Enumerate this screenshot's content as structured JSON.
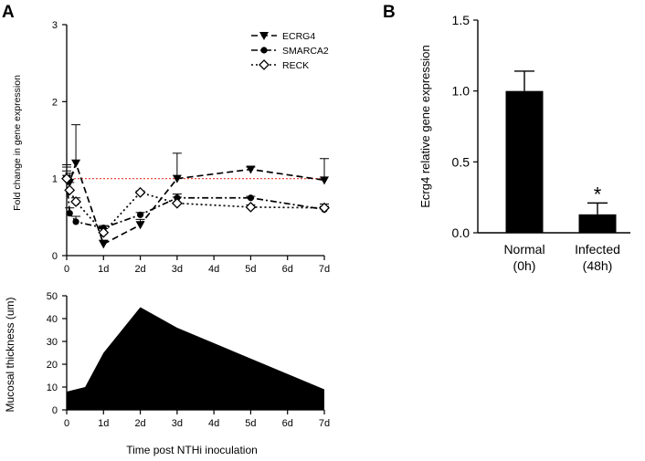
{
  "panels": {
    "a": {
      "label": "A"
    },
    "b": {
      "label": "B"
    }
  },
  "colors": {
    "axis": "#000000",
    "reference_line": "#e8382a",
    "bar": "#000000",
    "area": "#000000"
  },
  "chart_data": [
    {
      "id": "fold-change",
      "type": "line",
      "title": "",
      "xlabel": "",
      "ylabel": "Fold change in gene expression",
      "xlim": [
        0,
        7
      ],
      "ylim": [
        0,
        3
      ],
      "xticks": [
        0,
        1,
        2,
        3,
        4,
        5,
        6,
        7
      ],
      "xtick_labels": [
        "0",
        "1d",
        "2d",
        "3d",
        "4d",
        "5d",
        "6d",
        "7d"
      ],
      "yticks": [
        0,
        1,
        2,
        3
      ],
      "ytick_labels": [
        "0",
        "1",
        "2",
        "3"
      ],
      "reference_line": {
        "y": 1,
        "style": "dotted",
        "color": "#e8382a"
      },
      "series": [
        {
          "name": "ECRG4",
          "marker": "triangle-down",
          "linestyle": "dashed",
          "x": [
            0,
            0.08,
            0.25,
            1,
            2,
            3,
            5,
            7
          ],
          "y": [
            1.0,
            0.95,
            1.2,
            0.15,
            0.4,
            1.0,
            1.12,
            0.98
          ],
          "err": [
            0.15,
            0.12,
            0.5,
            0.05,
            0.07,
            0.33,
            0.03,
            0.28
          ]
        },
        {
          "name": "SMARCA2",
          "marker": "circle",
          "linestyle": "dash-dot",
          "x": [
            0,
            0.08,
            0.25,
            1,
            2,
            3,
            5,
            7
          ],
          "y": [
            1.0,
            0.55,
            0.44,
            0.36,
            0.53,
            0.75,
            0.75,
            0.6
          ],
          "err": [
            0.1,
            0.07,
            0.07,
            0.03,
            0.03,
            0.05,
            0.02,
            0.04
          ]
        },
        {
          "name": "RECK",
          "marker": "diamond-open",
          "linestyle": "dotted",
          "x": [
            0,
            0.08,
            0.25,
            1,
            2,
            3,
            5,
            7
          ],
          "y": [
            1.0,
            0.85,
            0.7,
            0.3,
            0.82,
            0.68,
            0.63,
            0.62
          ],
          "err": [
            0.18,
            0.1,
            0.05,
            0.05,
            0.02,
            0.08,
            0.03,
            0.05
          ]
        }
      ],
      "legend": {
        "position": "top-right"
      }
    },
    {
      "id": "mucosal-thickness",
      "type": "area",
      "title": "",
      "xlabel": "Time post NTHi inoculation",
      "ylabel": "Mucosal thickness (um)",
      "xlim": [
        0,
        7
      ],
      "ylim": [
        0,
        50
      ],
      "xticks": [
        0,
        1,
        2,
        3,
        4,
        5,
        6,
        7
      ],
      "xtick_labels": [
        "0",
        "1d",
        "2d",
        "3d",
        "4d",
        "5d",
        "6d",
        "7d"
      ],
      "yticks": [
        0,
        10,
        20,
        30,
        40,
        50
      ],
      "ytick_labels": [
        "0",
        "10",
        "20",
        "30",
        "40",
        "50"
      ],
      "x": [
        0,
        0.5,
        1,
        2,
        3,
        7
      ],
      "y": [
        8,
        10,
        25,
        45,
        36,
        9
      ]
    },
    {
      "id": "ecrg4-bar",
      "type": "bar",
      "title": "",
      "xlabel": "",
      "ylabel": "Ecrg4 relative gene expression",
      "ylim": [
        0,
        1.5
      ],
      "yticks": [
        0,
        0.5,
        1,
        1.5
      ],
      "ytick_labels": [
        "0.0",
        "0.5",
        "1.0",
        "1.5"
      ],
      "categories": [
        "Normal",
        "Infected"
      ],
      "category_sublabels": [
        "(0h)",
        "(48h)"
      ],
      "values": [
        1.0,
        0.13
      ],
      "err": [
        0.14,
        0.08
      ],
      "annotations": [
        "",
        "*"
      ]
    }
  ]
}
